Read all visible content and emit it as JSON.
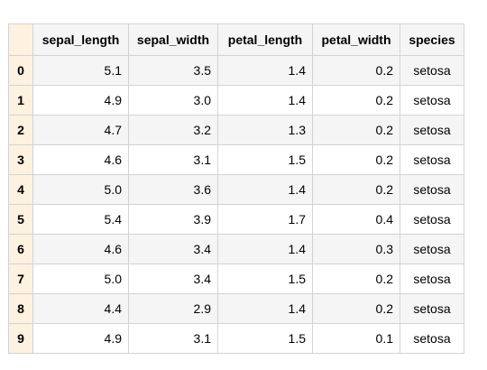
{
  "table": {
    "columns": [
      "sepal_length",
      "sepal_width",
      "petal_length",
      "petal_width",
      "species"
    ],
    "rows": [
      {
        "index": "0",
        "sepal_length": "5.1",
        "sepal_width": "3.5",
        "petal_length": "1.4",
        "petal_width": "0.2",
        "species": "setosa"
      },
      {
        "index": "1",
        "sepal_length": "4.9",
        "sepal_width": "3.0",
        "petal_length": "1.4",
        "petal_width": "0.2",
        "species": "setosa"
      },
      {
        "index": "2",
        "sepal_length": "4.7",
        "sepal_width": "3.2",
        "petal_length": "1.3",
        "petal_width": "0.2",
        "species": "setosa"
      },
      {
        "index": "3",
        "sepal_length": "4.6",
        "sepal_width": "3.1",
        "petal_length": "1.5",
        "petal_width": "0.2",
        "species": "setosa"
      },
      {
        "index": "4",
        "sepal_length": "5.0",
        "sepal_width": "3.6",
        "petal_length": "1.4",
        "petal_width": "0.2",
        "species": "setosa"
      },
      {
        "index": "5",
        "sepal_length": "5.4",
        "sepal_width": "3.9",
        "petal_length": "1.7",
        "petal_width": "0.4",
        "species": "setosa"
      },
      {
        "index": "6",
        "sepal_length": "4.6",
        "sepal_width": "3.4",
        "petal_length": "1.4",
        "petal_width": "0.3",
        "species": "setosa"
      },
      {
        "index": "7",
        "sepal_length": "5.0",
        "sepal_width": "3.4",
        "petal_length": "1.5",
        "petal_width": "0.2",
        "species": "setosa"
      },
      {
        "index": "8",
        "sepal_length": "4.4",
        "sepal_width": "2.9",
        "petal_length": "1.4",
        "petal_width": "0.2",
        "species": "setosa"
      },
      {
        "index": "9",
        "sepal_length": "4.9",
        "sepal_width": "3.1",
        "petal_length": "1.5",
        "petal_width": "0.1",
        "species": "setosa"
      }
    ]
  },
  "colors": {
    "index_background": "#fdf1e0",
    "header_background": "#f5f5f5",
    "stripe_background": "#f5f5f5",
    "border": "#d3d3d3"
  }
}
